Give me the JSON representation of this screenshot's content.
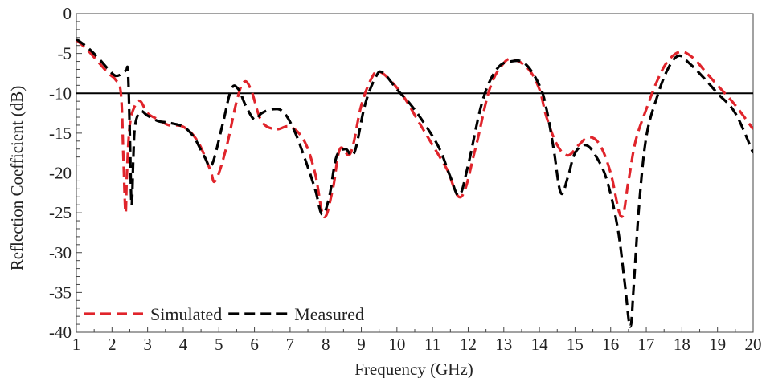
{
  "chart_data": {
    "type": "line",
    "title": "",
    "xlabel": "Frequency (GHz)",
    "ylabel": "Reflection Coefficient (dB)",
    "xlim": [
      1,
      20
    ],
    "ylim": [
      -40,
      0
    ],
    "x_ticks": [
      1,
      2,
      3,
      4,
      5,
      6,
      7,
      8,
      9,
      10,
      11,
      12,
      13,
      14,
      15,
      16,
      17,
      18,
      19,
      20
    ],
    "y_ticks": [
      0,
      -5,
      -10,
      -15,
      -20,
      -25,
      -30,
      -35,
      -40
    ],
    "grid": false,
    "reference_line": {
      "y": -10,
      "color": "#000000"
    },
    "legend": {
      "position": "bottom-left",
      "items": [
        {
          "name": "Simulated",
          "color": "#e0242b",
          "style": "dashed"
        },
        {
          "name": "Measured",
          "color": "#000000",
          "style": "dashed"
        }
      ]
    },
    "series": [
      {
        "name": "Simulated",
        "color": "#e0242b",
        "x": [
          1.0,
          1.3,
          1.6,
          1.9,
          2.1,
          2.25,
          2.32,
          2.38,
          2.42,
          2.5,
          2.65,
          2.8,
          3.0,
          3.3,
          3.6,
          4.0,
          4.4,
          4.75,
          4.9,
          5.2,
          5.5,
          5.7,
          5.9,
          6.2,
          6.6,
          7.0,
          7.4,
          7.7,
          7.95,
          8.2,
          8.4,
          8.7,
          9.0,
          9.3,
          9.5,
          9.8,
          10.2,
          10.6,
          11.0,
          11.4,
          11.8,
          12.2,
          12.6,
          13.0,
          13.3,
          13.7,
          14.0,
          14.2,
          14.5,
          14.8,
          15.1,
          15.4,
          15.7,
          16.0,
          16.3,
          16.5,
          16.7,
          17.0,
          17.3,
          17.6,
          17.95,
          18.3,
          18.7,
          19.0,
          19.5,
          20.0
        ],
        "y": [
          -3.3,
          -4.5,
          -6.0,
          -7.5,
          -8.3,
          -10.0,
          -18.0,
          -25.0,
          -20.0,
          -14.0,
          -11.5,
          -11.0,
          -12.5,
          -13.3,
          -14.0,
          -14.2,
          -16.0,
          -19.5,
          -21.0,
          -17.0,
          -11.0,
          -8.6,
          -9.5,
          -13.5,
          -14.5,
          -14.2,
          -16.0,
          -20.0,
          -25.5,
          -22.0,
          -17.0,
          -17.5,
          -11.5,
          -8.0,
          -7.3,
          -8.3,
          -10.5,
          -13.5,
          -16.5,
          -19.5,
          -23.0,
          -17.0,
          -9.5,
          -6.2,
          -5.8,
          -7.0,
          -9.5,
          -13.0,
          -16.5,
          -17.8,
          -16.5,
          -15.5,
          -16.5,
          -20.0,
          -25.5,
          -21.0,
          -16.0,
          -12.0,
          -8.5,
          -6.0,
          -4.8,
          -5.5,
          -7.5,
          -9.0,
          -11.5,
          -14.5
        ]
      },
      {
        "name": "Measured",
        "color": "#000000",
        "x": [
          1.0,
          1.3,
          1.6,
          1.9,
          2.1,
          2.3,
          2.4,
          2.45,
          2.5,
          2.55,
          2.6,
          2.65,
          2.8,
          3.0,
          3.3,
          3.6,
          4.0,
          4.3,
          4.6,
          4.8,
          5.1,
          5.35,
          5.55,
          5.75,
          6.0,
          6.2,
          6.5,
          6.8,
          7.1,
          7.4,
          7.7,
          7.9,
          8.1,
          8.3,
          8.55,
          8.8,
          9.1,
          9.4,
          9.6,
          10.0,
          10.4,
          10.8,
          11.2,
          11.5,
          11.75,
          12.0,
          12.4,
          12.8,
          13.2,
          13.6,
          14.0,
          14.2,
          14.4,
          14.6,
          14.8,
          15.0,
          15.3,
          15.6,
          15.9,
          16.2,
          16.4,
          16.55,
          16.65,
          16.8,
          17.0,
          17.3,
          17.6,
          17.9,
          18.2,
          18.6,
          19.0,
          19.5,
          20.0
        ],
        "y": [
          -3.2,
          -4.2,
          -5.5,
          -7.0,
          -7.8,
          -7.5,
          -7.1,
          -7.4,
          -15.0,
          -24.0,
          -18.0,
          -14.0,
          -12.3,
          -12.8,
          -13.5,
          -13.7,
          -14.2,
          -15.5,
          -18.0,
          -19.0,
          -14.0,
          -9.5,
          -9.5,
          -11.5,
          -13.3,
          -12.5,
          -12.0,
          -12.3,
          -14.5,
          -18.0,
          -22.0,
          -25.2,
          -23.0,
          -18.0,
          -17.0,
          -17.5,
          -11.5,
          -8.0,
          -7.4,
          -9.5,
          -11.5,
          -14.0,
          -17.0,
          -20.5,
          -22.8,
          -19.0,
          -11.0,
          -7.0,
          -6.0,
          -6.3,
          -9.0,
          -12.0,
          -17.0,
          -22.5,
          -20.5,
          -17.5,
          -16.5,
          -18.0,
          -21.0,
          -27.0,
          -34.0,
          -39.3,
          -34.0,
          -24.0,
          -15.5,
          -10.5,
          -7.0,
          -5.3,
          -6.2,
          -8.0,
          -10.0,
          -12.5,
          -17.5
        ]
      }
    ]
  }
}
